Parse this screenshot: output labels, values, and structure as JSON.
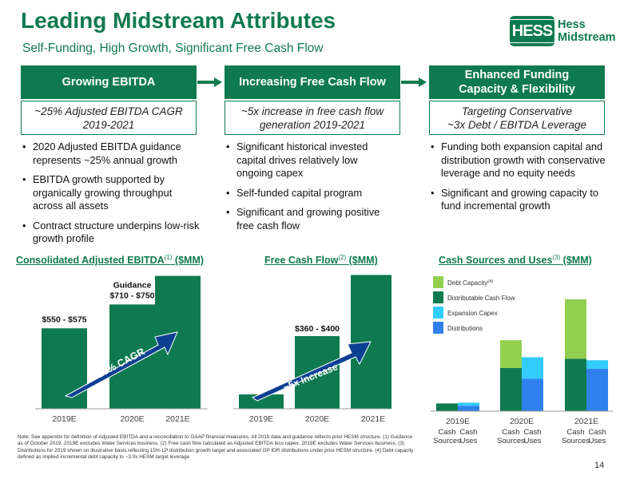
{
  "header": {
    "title": "Leading Midstream Attributes",
    "subtitle": "Self-Funding, High Growth, Significant Free Cash Flow",
    "logo_mark": "HESS",
    "logo_line1": "Hess",
    "logo_line2": "Midstream"
  },
  "columns": [
    {
      "header": [
        "Growing EBITDA"
      ],
      "sub": [
        "~25% Adjusted EBITDA CAGR",
        "2019-2021"
      ],
      "bullets": [
        "2020 Adjusted EBITDA guidance represents ~25% annual growth",
        "EBITDA growth supported by organically growing throughput across all assets",
        "Contract structure underpins low-risk growth profile"
      ]
    },
    {
      "header": [
        "Increasing Free Cash Flow"
      ],
      "sub": [
        "~5x increase in free cash flow",
        "generation 2019-2021"
      ],
      "bullets": [
        "Significant historical invested capital drives relatively low ongoing capex",
        "Self-funded capital program",
        "Significant and growing positive free cash flow"
      ]
    },
    {
      "header": [
        "Enhanced Funding",
        "Capacity & Flexibility"
      ],
      "sub": [
        "Targeting Conservative",
        "~3x Debt / EBITDA Leverage"
      ],
      "bullets": [
        "Funding both expansion capital and distribution growth with conservative leverage and no equity needs",
        "Significant and growing capacity to fund incremental growth"
      ]
    }
  ],
  "chart_titles": {
    "ebitda": {
      "text": "Consolidated Adjusted EBITDA",
      "sup": "(1)",
      "unit": " ($MM)"
    },
    "fcf": {
      "text": "Free Cash Flow",
      "sup": "(2)",
      "unit": " ($MM)"
    },
    "sources": {
      "text": "Cash Sources and Uses",
      "sup": "(3)",
      "unit": " ($MM)"
    }
  },
  "colors": {
    "brand_green": "#0f7a4f",
    "light_green": "#92d050",
    "light_blue": "#33ccff",
    "blue": "#2f80ed",
    "arrow_navy": "#0b3f91"
  },
  "chart_data": [
    {
      "type": "bar",
      "categories": [
        "2019E",
        "2020E",
        "2021E"
      ],
      "values": [
        563,
        730,
        930
      ],
      "data_labels": [
        "$550 - $575",
        "$710 - $750",
        ""
      ],
      "data_label_prefix": [
        "",
        "Guidance",
        ""
      ],
      "annotation": "~25% CAGR",
      "color": "#0f7a4f"
    },
    {
      "type": "bar",
      "categories": [
        "2019E",
        "2020E",
        "2021E"
      ],
      "values": [
        75,
        380,
        700
      ],
      "data_labels": [
        "",
        "$360 - $400",
        ""
      ],
      "annotation": "~5x Increase",
      "color": "#0f7a4f"
    },
    {
      "type": "bar",
      "stacked": true,
      "categories": [
        "2019E",
        "2020E",
        "2021E"
      ],
      "sub_categories": [
        "Cash Sources",
        "Cash Uses"
      ],
      "legend": [
        "Debt Capacity",
        "Distributable Cash Flow",
        "Expansion Capex",
        "Distributions"
      ],
      "legend_sup": [
        "(4)",
        "",
        "",
        ""
      ],
      "series": [
        {
          "name": "Distributable Cash Flow",
          "color": "#0f7a4f",
          "values": [
            100,
            560,
            680
          ]
        },
        {
          "name": "Debt Capacity",
          "color": "#92d050",
          "values": [
            0,
            360,
            770
          ]
        },
        {
          "name": "Distributions",
          "color": "#2f80ed",
          "values": [
            70,
            420,
            550
          ]
        },
        {
          "name": "Expansion Capex",
          "color": "#33ccff",
          "values": [
            40,
            280,
            110
          ]
        }
      ],
      "stack_map": {
        "Cash Sources": [
          "Distributable Cash Flow",
          "Debt Capacity"
        ],
        "Cash Uses": [
          "Distributions",
          "Expansion Capex"
        ]
      }
    }
  ],
  "footnote": "Note: See appendix for definition of Adjusted EBITDA and a reconciliation to GAAP financial measures. All 2019 data and guidance reflects prior HESM structure. (1) Guidance as of October 2019. 2019E excludes Water Services business. (2) Free cash flow calculated as Adjusted EBITDA less capex. 2019E excludes Water Services business. (3) Distributions for 2019 shown on illustrative basis reflecting 15% LP distribution growth target and associated GP IDR distributions under prior HESM structure. (4) Debt capacity defined as implied incremental debt capacity to ~3.0x HESM target leverage",
  "page_number": "14"
}
